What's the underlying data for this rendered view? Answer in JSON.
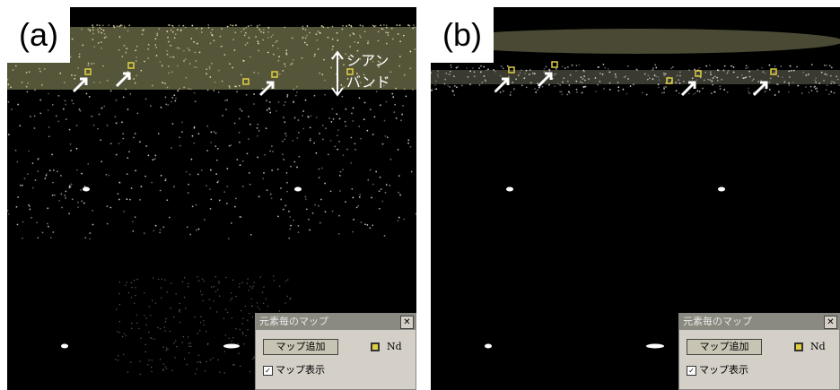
{
  "panels": [
    {
      "label": "(a)",
      "annotation": [
        "シアン",
        "バンド"
      ],
      "dialog": {
        "title": "元素毎のマップ",
        "button": "マップ追加",
        "element": "Nd",
        "checkbox": "マップ表示"
      }
    },
    {
      "label": "(b)",
      "dialog": {
        "title": "元素毎のマップ",
        "button": "マップ追加",
        "element": "Nd",
        "checkbox": "マップ表示"
      }
    }
  ]
}
